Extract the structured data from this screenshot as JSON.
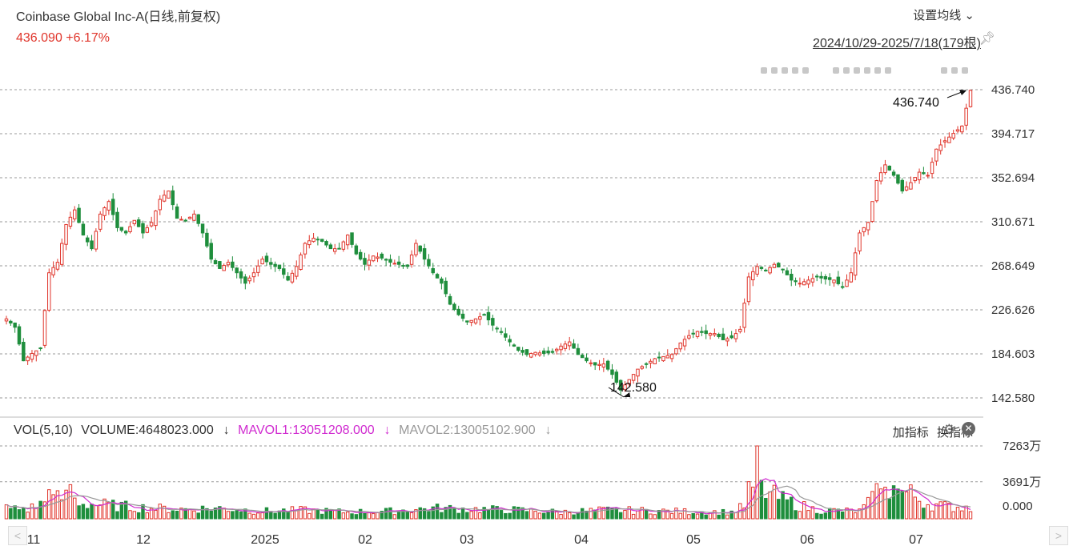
{
  "header": {
    "title": "Coinbase Global Inc-A(日线,前复权)",
    "price_line": "436.090 +6.17%",
    "ma_settings": "设置均线 ⌄",
    "range": "2024/10/29-2025/7/18(179根)"
  },
  "colors": {
    "up": "#e0352b",
    "down": "#1f8e3d",
    "ma1": "#d02bd0",
    "ma2": "#999999"
  },
  "icons": {
    "pin": "pin-icon",
    "gear": "gear-icon",
    "close": "close-icon"
  },
  "volume_legend": {
    "label": "VOL(5,10)",
    "volume": "VOLUME:4648023.000",
    "mavol1": "MAVOL1:13051208.000",
    "mavol2": "MAVOL2:13005102.900",
    "arrow": "↓"
  },
  "indicator_tools": {
    "add": "加指标",
    "switch": "换指标"
  },
  "scroll": {
    "left": "<",
    "right": ">"
  },
  "chart_data": {
    "type": "candlestick",
    "ylim": [
      142.58,
      436.74
    ],
    "y_ticks": [
      "436.740",
      "394.717",
      "352.694",
      "310.671",
      "268.649",
      "226.626",
      "184.603",
      "142.580"
    ],
    "x_ticks": [
      "11",
      "12",
      "2025",
      "02",
      "03",
      "04",
      "05",
      "06",
      "07"
    ],
    "annotations": {
      "high": "436.740",
      "low": "142.580"
    },
    "volume_ticks": [
      "7263万",
      "3691万",
      "0.000"
    ],
    "volume_ylim": [
      0,
      7263
    ],
    "anchors": [
      [
        0,
        218
      ],
      [
        2,
        210
      ],
      [
        4,
        178
      ],
      [
        6,
        185
      ],
      [
        8,
        190
      ],
      [
        10,
        262
      ],
      [
        12,
        272
      ],
      [
        14,
        308
      ],
      [
        16,
        322
      ],
      [
        18,
        298
      ],
      [
        20,
        285
      ],
      [
        22,
        318
      ],
      [
        24,
        330
      ],
      [
        26,
        305
      ],
      [
        28,
        300
      ],
      [
        30,
        312
      ],
      [
        32,
        300
      ],
      [
        34,
        310
      ],
      [
        36,
        332
      ],
      [
        38,
        340
      ],
      [
        40,
        314
      ],
      [
        42,
        312
      ],
      [
        44,
        318
      ],
      [
        46,
        300
      ],
      [
        48,
        275
      ],
      [
        50,
        266
      ],
      [
        52,
        272
      ],
      [
        54,
        262
      ],
      [
        56,
        252
      ],
      [
        58,
        262
      ],
      [
        60,
        275
      ],
      [
        62,
        270
      ],
      [
        64,
        266
      ],
      [
        66,
        255
      ],
      [
        68,
        268
      ],
      [
        70,
        290
      ],
      [
        72,
        295
      ],
      [
        74,
        292
      ],
      [
        76,
        285
      ],
      [
        78,
        285
      ],
      [
        80,
        298
      ],
      [
        82,
        280
      ],
      [
        84,
        270
      ],
      [
        86,
        278
      ],
      [
        88,
        276
      ],
      [
        90,
        272
      ],
      [
        92,
        270
      ],
      [
        94,
        268
      ],
      [
        96,
        290
      ],
      [
        98,
        275
      ],
      [
        100,
        262
      ],
      [
        102,
        252
      ],
      [
        104,
        232
      ],
      [
        106,
        222
      ],
      [
        108,
        215
      ],
      [
        110,
        218
      ],
      [
        112,
        222
      ],
      [
        114,
        212
      ],
      [
        116,
        205
      ],
      [
        118,
        196
      ],
      [
        120,
        188
      ],
      [
        122,
        184
      ],
      [
        124,
        186
      ],
      [
        126,
        185
      ],
      [
        128,
        186
      ],
      [
        130,
        192
      ],
      [
        132,
        196
      ],
      [
        134,
        184
      ],
      [
        136,
        178
      ],
      [
        138,
        174
      ],
      [
        140,
        175
      ],
      [
        142,
        165
      ],
      [
        144,
        150
      ],
      [
        146,
        160
      ],
      [
        148,
        170
      ],
      [
        150,
        175
      ],
      [
        152,
        180
      ],
      [
        154,
        182
      ],
      [
        156,
        184
      ],
      [
        158,
        195
      ],
      [
        160,
        202
      ],
      [
        162,
        206
      ],
      [
        164,
        204
      ],
      [
        166,
        204
      ],
      [
        168,
        198
      ],
      [
        170,
        200
      ],
      [
        172,
        208
      ],
      [
        174,
        258
      ],
      [
        176,
        268
      ],
      [
        178,
        264
      ],
      [
        180,
        270
      ],
      [
        182,
        265
      ],
      [
        184,
        255
      ],
      [
        186,
        252
      ],
      [
        188,
        255
      ],
      [
        190,
        258
      ],
      [
        192,
        256
      ],
      [
        194,
        255
      ],
      [
        196,
        248
      ],
      [
        198,
        262
      ],
      [
        200,
        300
      ],
      [
        202,
        310
      ],
      [
        204,
        350
      ],
      [
        206,
        365
      ],
      [
        208,
        355
      ],
      [
        210,
        340
      ],
      [
        212,
        348
      ],
      [
        214,
        358
      ],
      [
        216,
        355
      ],
      [
        218,
        380
      ],
      [
        220,
        388
      ],
      [
        222,
        395
      ],
      [
        224,
        402
      ],
      [
        226,
        436.09
      ]
    ],
    "volume_anchors": [
      [
        0,
        1100
      ],
      [
        5,
        1000
      ],
      [
        10,
        1900
      ],
      [
        14,
        2300
      ],
      [
        18,
        1600
      ],
      [
        22,
        1500
      ],
      [
        30,
        1200
      ],
      [
        40,
        1000
      ],
      [
        50,
        1100
      ],
      [
        60,
        800
      ],
      [
        70,
        900
      ],
      [
        80,
        700
      ],
      [
        90,
        800
      ],
      [
        100,
        1100
      ],
      [
        110,
        1000
      ],
      [
        120,
        900
      ],
      [
        130,
        700
      ],
      [
        140,
        900
      ],
      [
        150,
        850
      ],
      [
        160,
        750
      ],
      [
        170,
        700
      ],
      [
        174,
        1500
      ],
      [
        176,
        3300
      ],
      [
        178,
        2800
      ],
      [
        182,
        2000
      ],
      [
        186,
        1400
      ],
      [
        190,
        900
      ],
      [
        200,
        800
      ],
      [
        204,
        2400
      ],
      [
        208,
        3000
      ],
      [
        212,
        2600
      ],
      [
        216,
        1600
      ],
      [
        220,
        1300
      ],
      [
        226,
        1200
      ]
    ]
  }
}
